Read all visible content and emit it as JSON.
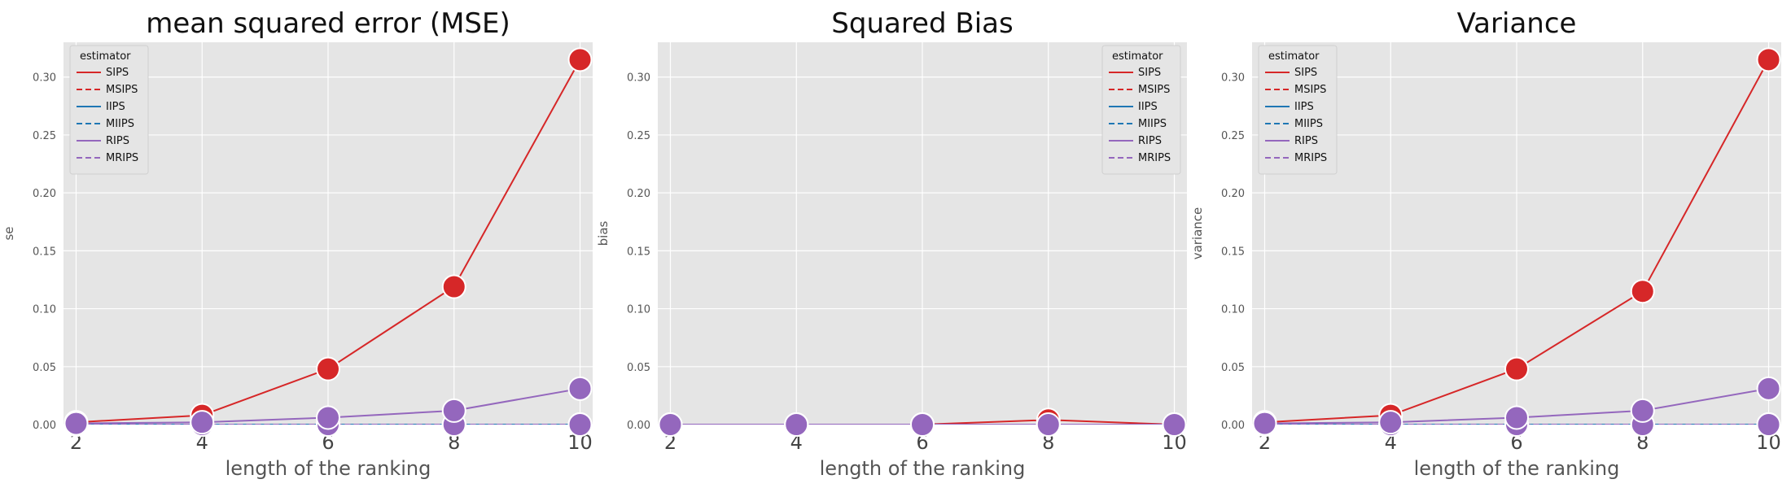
{
  "chart_data": [
    {
      "type": "line",
      "title": "mean squared error (MSE)",
      "xlabel": "length of the ranking",
      "ylabel": "se",
      "x": [
        2,
        4,
        6,
        8,
        10
      ],
      "xticks": [
        "2",
        "4",
        "6",
        "8",
        "10"
      ],
      "xlim": [
        1.8,
        10.2
      ],
      "ylim": [
        0,
        0.33
      ],
      "yticks": [
        "0.00",
        "0.05",
        "0.10",
        "0.15",
        "0.20",
        "0.25",
        "0.30"
      ],
      "grid": true,
      "legend": {
        "title": "estimator",
        "placement": "top-left"
      },
      "series": [
        {
          "name": "SIPS",
          "color": "#d62728",
          "dashed": false,
          "values": [
            0.002,
            0.008,
            0.048,
            0.119,
            0.315
          ]
        },
        {
          "name": "MSIPS",
          "color": "#d62728",
          "dashed": true,
          "values": [
            0.0,
            0.0,
            0.0,
            0.0,
            0.0
          ]
        },
        {
          "name": "IIPS",
          "color": "#1f77b4",
          "dashed": false,
          "values": [
            0.0,
            0.0,
            0.0,
            0.0,
            0.0
          ]
        },
        {
          "name": "MIIPS",
          "color": "#1f77b4",
          "dashed": true,
          "values": [
            0.0,
            0.0,
            0.0,
            0.0,
            0.0
          ]
        },
        {
          "name": "RIPS",
          "color": "#9467bd",
          "dashed": false,
          "values": [
            0.001,
            0.002,
            0.006,
            0.012,
            0.031
          ]
        },
        {
          "name": "MRIPS",
          "color": "#9467bd",
          "dashed": true,
          "values": [
            0.0,
            0.0,
            0.0,
            0.0,
            0.0
          ]
        }
      ]
    },
    {
      "type": "line",
      "title": "Squared Bias",
      "xlabel": "length of the ranking",
      "ylabel": "bias",
      "x": [
        2,
        4,
        6,
        8,
        10
      ],
      "xticks": [
        "2",
        "4",
        "6",
        "8",
        "10"
      ],
      "xlim": [
        1.8,
        10.2
      ],
      "ylim": [
        0,
        0.33
      ],
      "yticks": [
        "0.00",
        "0.05",
        "0.10",
        "0.15",
        "0.20",
        "0.25",
        "0.30"
      ],
      "grid": true,
      "legend": {
        "title": "estimator",
        "placement": "top-right"
      },
      "series": [
        {
          "name": "SIPS",
          "color": "#d62728",
          "dashed": false,
          "values": [
            0.0,
            0.0,
            0.0,
            0.004,
            0.0
          ]
        },
        {
          "name": "MSIPS",
          "color": "#d62728",
          "dashed": true,
          "values": [
            0.0,
            0.0,
            0.0,
            0.0,
            0.0
          ]
        },
        {
          "name": "IIPS",
          "color": "#1f77b4",
          "dashed": false,
          "values": [
            0.0,
            0.0,
            0.0,
            0.0,
            0.0
          ]
        },
        {
          "name": "MIIPS",
          "color": "#1f77b4",
          "dashed": true,
          "values": [
            0.0,
            0.0,
            0.0,
            0.0,
            0.0
          ]
        },
        {
          "name": "RIPS",
          "color": "#9467bd",
          "dashed": false,
          "values": [
            0.0,
            0.0,
            0.0,
            0.0,
            0.0
          ]
        },
        {
          "name": "MRIPS",
          "color": "#9467bd",
          "dashed": true,
          "values": [
            0.0,
            0.0,
            0.0,
            0.0,
            0.0
          ]
        }
      ]
    },
    {
      "type": "line",
      "title": "Variance",
      "xlabel": "length of the ranking",
      "ylabel": "variance",
      "x": [
        2,
        4,
        6,
        8,
        10
      ],
      "xticks": [
        "2",
        "4",
        "6",
        "8",
        "10"
      ],
      "xlim": [
        1.8,
        10.2
      ],
      "ylim": [
        0,
        0.33
      ],
      "yticks": [
        "0.00",
        "0.05",
        "0.10",
        "0.15",
        "0.20",
        "0.25",
        "0.30"
      ],
      "grid": true,
      "legend": {
        "title": "estimator",
        "placement": "top-left"
      },
      "series": [
        {
          "name": "SIPS",
          "color": "#d62728",
          "dashed": false,
          "values": [
            0.002,
            0.008,
            0.048,
            0.115,
            0.315
          ]
        },
        {
          "name": "MSIPS",
          "color": "#d62728",
          "dashed": true,
          "values": [
            0.0,
            0.0,
            0.0,
            0.0,
            0.0
          ]
        },
        {
          "name": "IIPS",
          "color": "#1f77b4",
          "dashed": false,
          "values": [
            0.0,
            0.0,
            0.0,
            0.0,
            0.0
          ]
        },
        {
          "name": "MIIPS",
          "color": "#1f77b4",
          "dashed": true,
          "values": [
            0.0,
            0.0,
            0.0,
            0.0,
            0.0
          ]
        },
        {
          "name": "RIPS",
          "color": "#9467bd",
          "dashed": false,
          "values": [
            0.001,
            0.002,
            0.006,
            0.012,
            0.031
          ]
        },
        {
          "name": "MRIPS",
          "color": "#9467bd",
          "dashed": true,
          "values": [
            0.0,
            0.0,
            0.0,
            0.0,
            0.0
          ]
        }
      ]
    }
  ]
}
